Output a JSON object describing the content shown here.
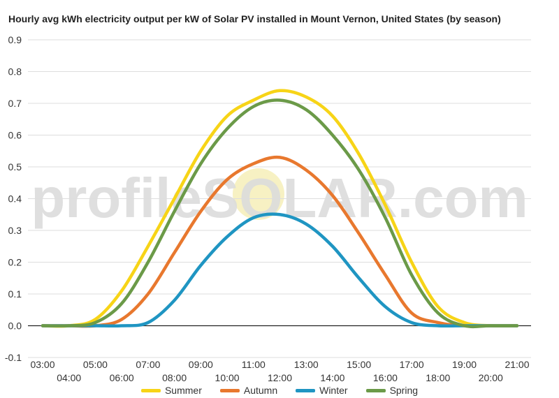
{
  "chart_data": {
    "type": "line",
    "title": "Hourly avg kWh electricity output per kW of Solar PV installed in Mount Vernon, United States (by season)",
    "watermark": "profileSOLAR.com",
    "xlabel": "",
    "ylabel": "",
    "x": [
      "03:00",
      "04:00",
      "05:00",
      "06:00",
      "07:00",
      "08:00",
      "09:00",
      "10:00",
      "11:00",
      "12:00",
      "13:00",
      "14:00",
      "15:00",
      "16:00",
      "17:00",
      "18:00",
      "19:00",
      "20:00",
      "21:00"
    ],
    "ylim": [
      -0.1,
      0.9
    ],
    "yticks": [
      "-0.1",
      "0.0",
      "0.1",
      "0.2",
      "0.3",
      "0.4",
      "0.5",
      "0.6",
      "0.7",
      "0.8",
      "0.9"
    ],
    "grid": true,
    "legend_position": "bottom",
    "series": [
      {
        "name": "Summer",
        "color": "#f7d417",
        "values": [
          0.0,
          0.0,
          0.02,
          0.11,
          0.25,
          0.4,
          0.55,
          0.66,
          0.71,
          0.74,
          0.72,
          0.66,
          0.54,
          0.38,
          0.2,
          0.06,
          0.01,
          0.0,
          0.0
        ]
      },
      {
        "name": "Autumn",
        "color": "#e8782e",
        "values": [
          0.0,
          0.0,
          0.0,
          0.02,
          0.1,
          0.23,
          0.36,
          0.46,
          0.51,
          0.53,
          0.49,
          0.41,
          0.29,
          0.16,
          0.04,
          0.01,
          0.0,
          0.0,
          0.0
        ]
      },
      {
        "name": "Winter",
        "color": "#1f95c2",
        "values": [
          0.0,
          0.0,
          0.0,
          0.0,
          0.01,
          0.08,
          0.19,
          0.28,
          0.34,
          0.35,
          0.32,
          0.25,
          0.15,
          0.06,
          0.01,
          0.0,
          0.0,
          0.0,
          0.0
        ]
      },
      {
        "name": "Spring",
        "color": "#6b9a48",
        "values": [
          0.0,
          0.0,
          0.01,
          0.07,
          0.2,
          0.36,
          0.51,
          0.62,
          0.69,
          0.71,
          0.68,
          0.6,
          0.49,
          0.34,
          0.16,
          0.04,
          0.0,
          0.0,
          0.0
        ]
      }
    ]
  }
}
